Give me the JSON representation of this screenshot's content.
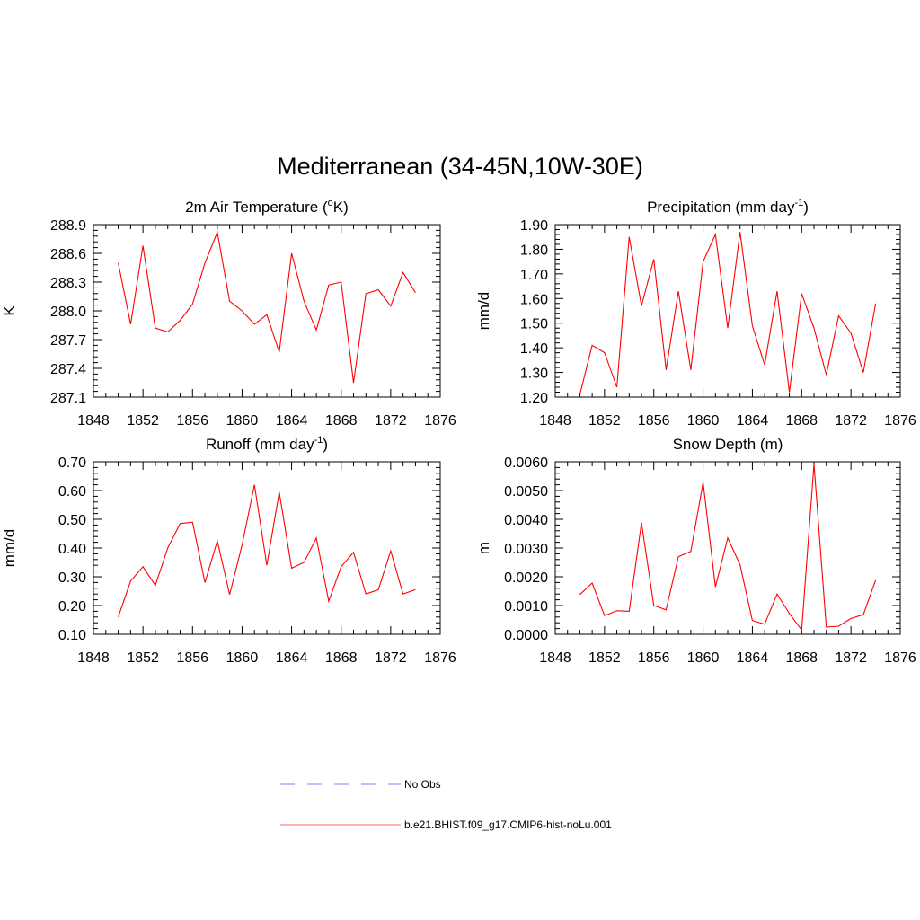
{
  "title": "Mediterranean (34-45N,10W-30E)",
  "legend": [
    {
      "label": "No Obs",
      "color": "#9a9aff",
      "dash": true
    },
    {
      "label": "b.e21.BHIST.f09_g17.CMIP6-hist-noLu.001",
      "color": "#ff8080",
      "dash": false
    }
  ],
  "chart_data": [
    {
      "type": "line",
      "title": "2m Air Temperature (",
      "title_sup": "o",
      "title_after": "K)",
      "ylabel": "K",
      "xlim": [
        1848,
        1876
      ],
      "ylim": [
        287.1,
        288.9
      ],
      "xticks": [
        1848,
        1852,
        1856,
        1860,
        1864,
        1868,
        1872,
        1876
      ],
      "yticks": [
        "287.1",
        "287.4",
        "287.7",
        "288.0",
        "288.3",
        "288.6",
        "288.9"
      ],
      "ytick_values": [
        287.1,
        287.4,
        287.7,
        288.0,
        288.3,
        288.6,
        288.9
      ],
      "color": "#ff0000",
      "x": [
        1850,
        1851,
        1852,
        1853,
        1854,
        1855,
        1856,
        1857,
        1858,
        1859,
        1860,
        1861,
        1862,
        1863,
        1864,
        1865,
        1866,
        1867,
        1868,
        1869,
        1870,
        1871,
        1872,
        1873,
        1874
      ],
      "y": [
        288.5,
        287.86,
        288.68,
        287.82,
        287.78,
        287.9,
        288.07,
        288.5,
        288.82,
        288.1,
        288.0,
        287.86,
        287.96,
        287.57,
        288.6,
        288.1,
        287.8,
        288.27,
        288.3,
        287.25,
        288.18,
        288.22,
        288.05,
        288.4,
        288.19
      ]
    },
    {
      "type": "line",
      "title": "Precipitation (mm day",
      "title_sup": "-1",
      "title_after": ")",
      "ylabel": "mm/d",
      "xlim": [
        1848,
        1876
      ],
      "ylim": [
        1.2,
        1.9
      ],
      "xticks": [
        1848,
        1852,
        1856,
        1860,
        1864,
        1868,
        1872,
        1876
      ],
      "yticks": [
        "1.20",
        "1.30",
        "1.40",
        "1.50",
        "1.60",
        "1.70",
        "1.80",
        "1.90"
      ],
      "ytick_values": [
        1.2,
        1.3,
        1.4,
        1.5,
        1.6,
        1.7,
        1.8,
        1.9
      ],
      "color": "#ff0000",
      "x": [
        1850,
        1851,
        1852,
        1853,
        1854,
        1855,
        1856,
        1857,
        1858,
        1859,
        1860,
        1861,
        1862,
        1863,
        1864,
        1865,
        1866,
        1867,
        1868,
        1869,
        1870,
        1871,
        1872,
        1873,
        1874
      ],
      "y": [
        1.21,
        1.41,
        1.38,
        1.24,
        1.85,
        1.57,
        1.76,
        1.31,
        1.63,
        1.31,
        1.75,
        1.86,
        1.48,
        1.87,
        1.49,
        1.33,
        1.63,
        1.22,
        1.62,
        1.48,
        1.29,
        1.53,
        1.46,
        1.3,
        1.58
      ]
    },
    {
      "type": "line",
      "title": "Runoff (mm day",
      "title_sup": "-1",
      "title_after": ")",
      "ylabel": "mm/d",
      "xlim": [
        1848,
        1876
      ],
      "ylim": [
        0.1,
        0.7
      ],
      "xticks": [
        1848,
        1852,
        1856,
        1860,
        1864,
        1868,
        1872,
        1876
      ],
      "yticks": [
        "0.10",
        "0.20",
        "0.30",
        "0.40",
        "0.50",
        "0.60",
        "0.70"
      ],
      "ytick_values": [
        0.1,
        0.2,
        0.3,
        0.4,
        0.5,
        0.6,
        0.7
      ],
      "color": "#ff0000",
      "x": [
        1850,
        1851,
        1852,
        1853,
        1854,
        1855,
        1856,
        1857,
        1858,
        1859,
        1860,
        1861,
        1862,
        1863,
        1864,
        1865,
        1866,
        1867,
        1868,
        1869,
        1870,
        1871,
        1872,
        1873,
        1874
      ],
      "y": [
        0.16,
        0.285,
        0.335,
        0.27,
        0.4,
        0.485,
        0.49,
        0.28,
        0.425,
        0.238,
        0.41,
        0.62,
        0.34,
        0.595,
        0.33,
        0.35,
        0.435,
        0.215,
        0.335,
        0.385,
        0.24,
        0.255,
        0.39,
        0.24,
        0.255
      ]
    },
    {
      "type": "line",
      "title": "Snow Depth (m)",
      "title_sup": "",
      "title_after": "",
      "ylabel": "m",
      "xlim": [
        1848,
        1876
      ],
      "ylim": [
        0.0,
        0.006
      ],
      "xticks": [
        1848,
        1852,
        1856,
        1860,
        1864,
        1868,
        1872,
        1876
      ],
      "yticks": [
        "0.0000",
        "0.0010",
        "0.0020",
        "0.0030",
        "0.0040",
        "0.0050",
        "0.0060"
      ],
      "ytick_values": [
        0.0,
        0.001,
        0.002,
        0.003,
        0.004,
        0.005,
        0.006
      ],
      "color": "#ff0000",
      "x": [
        1850,
        1851,
        1852,
        1853,
        1854,
        1855,
        1856,
        1857,
        1858,
        1859,
        1860,
        1861,
        1862,
        1863,
        1864,
        1865,
        1866,
        1867,
        1868,
        1869,
        1870,
        1871,
        1872,
        1873,
        1874
      ],
      "y": [
        0.00138,
        0.00178,
        0.00065,
        0.00082,
        0.0008,
        0.00388,
        0.001,
        0.00085,
        0.0027,
        0.00288,
        0.00528,
        0.00165,
        0.00335,
        0.00242,
        0.00048,
        0.00035,
        0.0014,
        0.00072,
        0.00015,
        0.00592,
        0.00025,
        0.00028,
        0.00055,
        0.00068,
        0.00188
      ]
    }
  ]
}
